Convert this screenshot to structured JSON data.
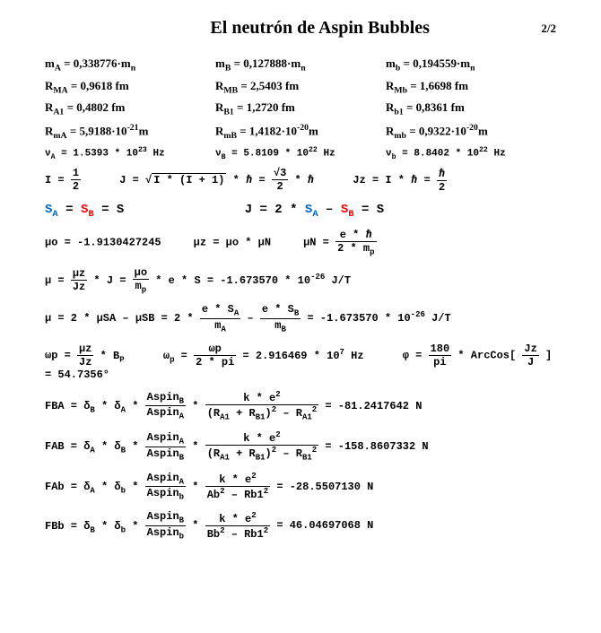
{
  "header": {
    "title": "El neutrón de Aspin Bubbles",
    "page": "2/2"
  },
  "masses": {
    "mA": "m<sub>A</sub> =  0,338776·m<sub>n</sub>",
    "mB": "m<sub>B</sub> = 0,127888·m<sub>n</sub>",
    "mb": "m<sub>b</sub> =  0,194559·m<sub>n</sub>"
  },
  "radiiM": {
    "RMA": "R<sub>MA</sub> = 0,9618 fm",
    "RMB": "R<sub>MB</sub> = 2,5403 fm",
    "RMb": "R<sub>Mb</sub> = 1,6698 fm"
  },
  "radii1": {
    "RA1": "R<sub>A1</sub> = 0,4802 fm",
    "RB1": "R<sub>B1</sub> = 1,2720 fm",
    "Rb1": "R<sub>b1</sub> = 0,8361 fm"
  },
  "radiim": {
    "RmA": "R<sub>mA</sub> = 5,9188·10<sup>-21</sup>m",
    "RmB": "R<sub>mB</sub> = 1,4182·10<sup>-20</sup>m",
    "Rmb": "R<sub>mb</sub> = 0,9322·10<sup>-20</sup>m"
  },
  "freq": {
    "vA": "ν<sub>A</sub> = 1.5393 * 10<sup>23</sup> Hz",
    "vB": "ν<sub>B</sub> = 5.8109 * 10<sup>22</sup> Hz",
    "vb": "ν<sub>b</sub> = 8.8402 * 10<sup>22</sup> Hz"
  },
  "spin": {
    "I_label": "I = ",
    "I_num": "1",
    "I_den": "2",
    "J_pre": "J = ",
    "J_sqrt": "I * (I + 1)",
    "J_suf": " * ℏ = ",
    "J2_num": "√3",
    "J2_den": "2",
    "J2_suf": " * ℏ",
    "Jz_pre": "Jz = I * ℏ = ",
    "Jz_num": "ℏ",
    "Jz_den": "2"
  },
  "S": {
    "lhs_SA": "S",
    "lhs_SAsub": "A",
    "eq": " =  ",
    "lhs_SB": "S",
    "lhs_SBsub": "B",
    "rhs": " = S",
    "J_lhs": "J = 2 * ",
    "J_SA": "S",
    "J_SA_sub": "A",
    "J_min": " – ",
    "J_SB": "S",
    "J_SB_sub": "B",
    "J_rhs": " = S"
  },
  "mu": {
    "muo": "μo = -1.9130427245",
    "muz": "μz = μo * μN",
    "muN_pre": "μN = ",
    "muN_num": "e * ℏ",
    "muN_den": "2 * m<sub>p</sub>",
    "mu_pre": "μ = ",
    "mu_f1_num": "μz",
    "mu_f1_den": "Jz",
    "mu_mid1": " * J = ",
    "mu_f2_num": "μo",
    "mu_f2_den": "m<sub>p</sub>",
    "mu_mid2": " * e * S = -1.673570 * 10<sup>-26</sup> J/T",
    "mu2_pre": "μ = 2 * μSA – μSB = 2 * ",
    "mu2_f1_num": "e * S<sub>A</sub>",
    "mu2_f1_den": "m<sub>A</sub>",
    "mu2_mid": " – ",
    "mu2_f2_num": "e * S<sub>B</sub>",
    "mu2_f2_den": "m<sub>B</sub>",
    "mu2_suf": " = -1.673570 * 10<sup>-26</sup> J/T"
  },
  "omega": {
    "wp_pre": "ωp = ",
    "wp_num": "μz",
    "wp_den": "Jz",
    "wp_suf": " * B<sub>P</sub>",
    "wp2_pre": "ω<sub>p</sub> = ",
    "wp2_num": "ωp",
    "wp2_den": "2 * pi",
    "wp2_suf": " = 2.916469 * 10<sup>7</sup> Hz",
    "phi_pre": "φ = ",
    "phi_num": "180",
    "phi_den": "pi",
    "phi_mid": " * ArcCos[",
    "phi_f_num": "Jz",
    "phi_f_den": "J",
    "phi_suf": "] = 54.7356°"
  },
  "forces": {
    "FBA_pre": "FBA =  δ<sub>B</sub> *  δ<sub>A</sub> * ",
    "FBA_f1_num": "Aspin<sub>B</sub>",
    "FBA_f1_den": "Aspin<sub>A</sub>",
    "FBA_mid": " * ",
    "FBA_f2_num": "k * e<sup>2</sup>",
    "FBA_f2_den": "(R<sub>A1</sub> + R<sub>B1</sub>)<sup>2</sup> – R<sub>A1</sub><sup>2</sup>",
    "FBA_suf": " = -81.2417642 N",
    "FAB_pre": "FAB =  δ<sub>A</sub> *  δ<sub>B</sub> * ",
    "FAB_f1_num": "Aspin<sub>A</sub>",
    "FAB_f1_den": "Aspin<sub>B</sub>",
    "FAB_f2_num": "k * e<sup>2</sup>",
    "FAB_f2_den": "(R<sub>A1</sub> + R<sub>B1</sub>)<sup>2</sup> – R<sub>B1</sub><sup>2</sup>",
    "FAB_suf": " = -158.8607332 N",
    "FAb_pre": "FAb =  δ<sub>A</sub> *  δ<sub>b</sub> * ",
    "FAb_f1_num": "Aspin<sub>A</sub>",
    "FAb_f1_den": "Aspin<sub>b</sub>",
    "FAb_f2_num": "k * e<sup>2</sup>",
    "FAb_f2_den": "Ab<sup>2</sup> – Rb1<sup>2</sup>",
    "FAb_suf": " = -28.5507130 N",
    "FBb_pre": "FBb =  δ<sub>B</sub> *  δ<sub>b</sub> * ",
    "FBb_f1_num": "Aspin<sub>B</sub>",
    "FBb_f1_den": "Aspin<sub>b</sub>",
    "FBb_f2_num": "k * e<sup>2</sup>",
    "FBb_f2_den": "Bb<sup>2</sup> – Rb1<sup>2</sup>",
    "FBb_suf": " = 46.04697068 N"
  }
}
